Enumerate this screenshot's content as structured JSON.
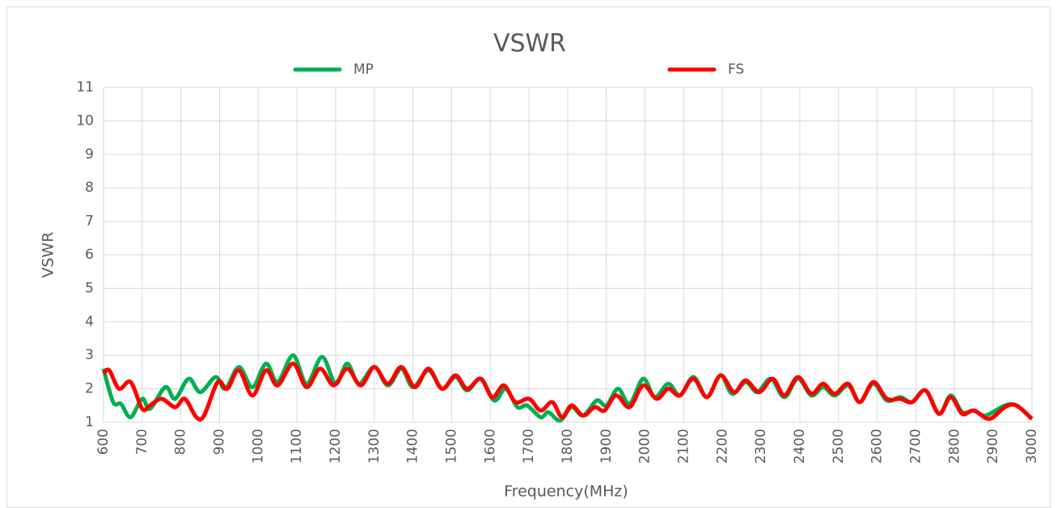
{
  "chart_data": {
    "type": "line",
    "title": "VSWR",
    "x_label": "Frequency(MHz)",
    "y_label": "VSWR",
    "xlim": [
      600,
      3000
    ],
    "xticks": [
      600,
      700,
      800,
      900,
      1000,
      1100,
      1200,
      1300,
      1400,
      1500,
      1600,
      1700,
      1800,
      1900,
      2000,
      2100,
      2200,
      2300,
      2400,
      2500,
      2600,
      2700,
      2800,
      2900,
      3000
    ],
    "ylim": [
      1,
      11
    ],
    "yticks": [
      1,
      2,
      3,
      4,
      5,
      6,
      7,
      8,
      9,
      10,
      11
    ],
    "grid": true,
    "legend": "top",
    "series": [
      {
        "name": "MP",
        "color": "#00b050",
        "x": [
          600,
          625,
          645,
          670,
          700,
          720,
          760,
          785,
          820,
          850,
          890,
          915,
          950,
          985,
          1020,
          1050,
          1090,
          1125,
          1165,
          1200,
          1230,
          1260,
          1300,
          1335,
          1370,
          1400,
          1440,
          1475,
          1510,
          1540,
          1575,
          1610,
          1640,
          1670,
          1695,
          1730,
          1750,
          1780,
          1810,
          1840,
          1875,
          1900,
          1930,
          1960,
          1995,
          2025,
          2060,
          2090,
          2125,
          2160,
          2195,
          2225,
          2260,
          2290,
          2325,
          2360,
          2395,
          2430,
          2460,
          2490,
          2525,
          2555,
          2590,
          2625,
          2660,
          2690,
          2725,
          2760,
          2790,
          2820,
          2850,
          2880,
          2930,
          2960,
          3000
        ],
        "values": [
          2.6,
          1.6,
          1.55,
          1.15,
          1.7,
          1.4,
          2.05,
          1.7,
          2.3,
          1.9,
          2.35,
          2.0,
          2.65,
          2.05,
          2.75,
          2.2,
          3.0,
          2.15,
          2.95,
          2.15,
          2.75,
          2.15,
          2.65,
          2.1,
          2.6,
          2.05,
          2.55,
          2.0,
          2.35,
          1.95,
          2.3,
          1.65,
          2.0,
          1.45,
          1.5,
          1.15,
          1.3,
          1.05,
          1.45,
          1.2,
          1.65,
          1.5,
          2.0,
          1.55,
          2.3,
          1.75,
          2.15,
          1.8,
          2.35,
          1.75,
          2.4,
          1.85,
          2.2,
          1.9,
          2.3,
          1.75,
          2.3,
          1.8,
          2.05,
          1.8,
          2.1,
          1.6,
          2.15,
          1.65,
          1.75,
          1.6,
          1.95,
          1.25,
          1.8,
          1.3,
          1.35,
          1.2,
          1.5,
          1.5,
          1.1
        ]
      },
      {
        "name": "FS",
        "color": "#ff0000",
        "x": [
          600,
          615,
          640,
          670,
          700,
          720,
          750,
          785,
          810,
          840,
          860,
          895,
          920,
          950,
          985,
          1020,
          1050,
          1090,
          1125,
          1160,
          1195,
          1230,
          1265,
          1300,
          1335,
          1370,
          1405,
          1440,
          1475,
          1510,
          1540,
          1575,
          1605,
          1635,
          1665,
          1700,
          1730,
          1760,
          1785,
          1810,
          1840,
          1870,
          1895,
          1925,
          1960,
          1995,
          2030,
          2060,
          2090,
          2125,
          2160,
          2195,
          2230,
          2260,
          2295,
          2330,
          2360,
          2395,
          2430,
          2460,
          2490,
          2525,
          2555,
          2590,
          2625,
          2660,
          2690,
          2725,
          2760,
          2790,
          2820,
          2850,
          2890,
          2930,
          2960,
          3000
        ],
        "values": [
          2.45,
          2.55,
          2.0,
          2.2,
          1.4,
          1.5,
          1.7,
          1.45,
          1.7,
          1.15,
          1.2,
          2.2,
          2.0,
          2.55,
          1.8,
          2.55,
          2.1,
          2.75,
          2.05,
          2.6,
          2.1,
          2.6,
          2.1,
          2.65,
          2.15,
          2.65,
          2.05,
          2.6,
          2.0,
          2.4,
          2.0,
          2.3,
          1.75,
          2.1,
          1.6,
          1.7,
          1.35,
          1.6,
          1.15,
          1.5,
          1.2,
          1.45,
          1.35,
          1.8,
          1.45,
          2.1,
          1.7,
          2.0,
          1.8,
          2.3,
          1.75,
          2.4,
          1.9,
          2.25,
          1.9,
          2.3,
          1.8,
          2.35,
          1.85,
          2.15,
          1.85,
          2.15,
          1.6,
          2.2,
          1.7,
          1.7,
          1.6,
          1.95,
          1.25,
          1.75,
          1.25,
          1.35,
          1.1,
          1.45,
          1.5,
          1.1
        ]
      }
    ]
  }
}
